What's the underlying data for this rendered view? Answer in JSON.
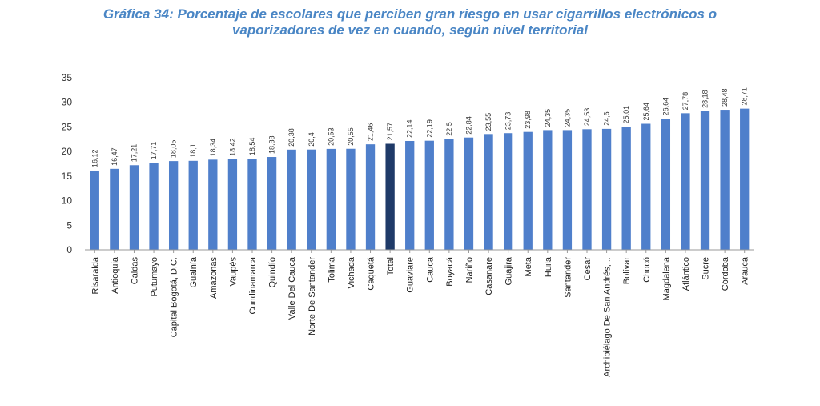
{
  "chart_data": {
    "type": "bar",
    "title_line1": "Gráfica 34: Porcentaje de escolares que perciben gran riesgo en usar cigarrillos electrónicos o",
    "title_line2": "vaporizadores de vez en cuando, según nivel territorial",
    "xlabel": "",
    "ylabel": "",
    "ylim": [
      0,
      35
    ],
    "yticks": [
      0,
      5,
      10,
      15,
      20,
      25,
      30,
      35
    ],
    "grid": false,
    "legend": "none",
    "categories": [
      "Risaralda",
      "Antioquia",
      "Caldas",
      "Putumayo",
      "Capital Bogotá, D.C.",
      "Guainía",
      "Amazonas",
      "Vaupés",
      "Cundinamarca",
      "Quindío",
      "Valle Del Cauca",
      "Norte De Santander",
      "Tolima",
      "Vichada",
      "Caquetá",
      "Total",
      "Guaviare",
      "Cauca",
      "Boyacá",
      "Nariño",
      "Casanare",
      "Guajira",
      "Meta",
      "Huila",
      "Santander",
      "Cesar",
      "Archipiélago De San Andrés,...",
      "Bolívar",
      "Chocó",
      "Magdalena",
      "Atlántico",
      "Sucre",
      "Córdoba",
      "Arauca"
    ],
    "values": [
      16.12,
      16.47,
      17.21,
      17.71,
      18.05,
      18.1,
      18.34,
      18.42,
      18.54,
      18.88,
      20.38,
      20.4,
      20.53,
      20.55,
      21.46,
      21.57,
      22.14,
      22.19,
      22.5,
      22.84,
      23.55,
      23.73,
      23.98,
      24.35,
      24.35,
      24.53,
      24.6,
      25.01,
      25.64,
      26.64,
      27.78,
      28.18,
      28.48,
      28.71
    ],
    "value_labels": [
      "16,12",
      "16,47",
      "17,21",
      "17,71",
      "18,05",
      "18,1",
      "18,34",
      "18,42",
      "18,54",
      "18,88",
      "20,38",
      "20,4",
      "20,53",
      "20,55",
      "21,46",
      "21,57",
      "22,14",
      "22,19",
      "22,5",
      "22,84",
      "23,55",
      "23,73",
      "23,98",
      "24,35",
      "24,35",
      "24,53",
      "24,6",
      "25,01",
      "25,64",
      "26,64",
      "27,78",
      "28,18",
      "28,48",
      "28,71"
    ],
    "highlight_category": "Total",
    "colors": {
      "bar": "#4f7fcb",
      "highlight": "#1f3a68",
      "title": "#4a86c5",
      "axis": "#999999"
    }
  }
}
